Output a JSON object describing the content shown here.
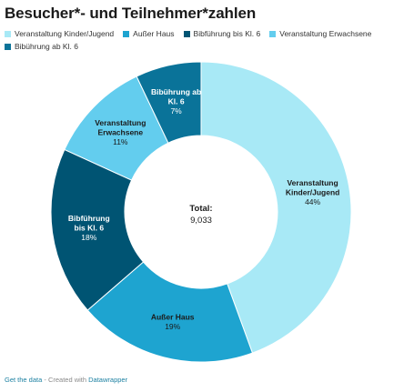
{
  "title": "Besucher*- und Teilnehmer*zahlen",
  "legend": [
    {
      "label": "Veranstaltung Kinder/Jugend",
      "color": "#a8e9f6"
    },
    {
      "label": "Außer Haus",
      "color": "#1ea4d0"
    },
    {
      "label": "Bibführung bis Kl. 6",
      "color": "#005473"
    },
    {
      "label": "Veranstaltung Erwachsene",
      "color": "#63cdee"
    },
    {
      "label": "Bibührung ab Kl. 6",
      "color": "#0a7399"
    }
  ],
  "chart_data": {
    "type": "pie",
    "title": "Besucher*- und Teilnehmer*zahlen",
    "total_label": "Total:",
    "total_value": "9,033",
    "slices": [
      {
        "label_lines": [
          "Veranstaltung",
          "Kinder/Jugend"
        ],
        "percent": 44,
        "percent_text": "44%",
        "color": "#a8e9f6",
        "text_color": "#1a1a1a"
      },
      {
        "label_lines": [
          "Außer Haus"
        ],
        "percent": 19,
        "percent_text": "19%",
        "color": "#1ea4d0",
        "text_color": "#1a1a1a"
      },
      {
        "label_lines": [
          "Bibführung",
          "bis Kl. 6"
        ],
        "percent": 18,
        "percent_text": "18%",
        "color": "#005473",
        "text_color": "#ffffff"
      },
      {
        "label_lines": [
          "Veranstaltung",
          "Erwachsene"
        ],
        "percent": 11,
        "percent_text": "11%",
        "color": "#63cdee",
        "text_color": "#1a1a1a"
      },
      {
        "label_lines": [
          "Bibührung ab",
          "Kl. 6"
        ],
        "percent": 7,
        "percent_text": "7%",
        "color": "#0a7399",
        "text_color": "#ffffff"
      }
    ]
  },
  "footer": {
    "get_data": "Get the data",
    "separator": " - Created with ",
    "tool": "Datawrapper"
  }
}
